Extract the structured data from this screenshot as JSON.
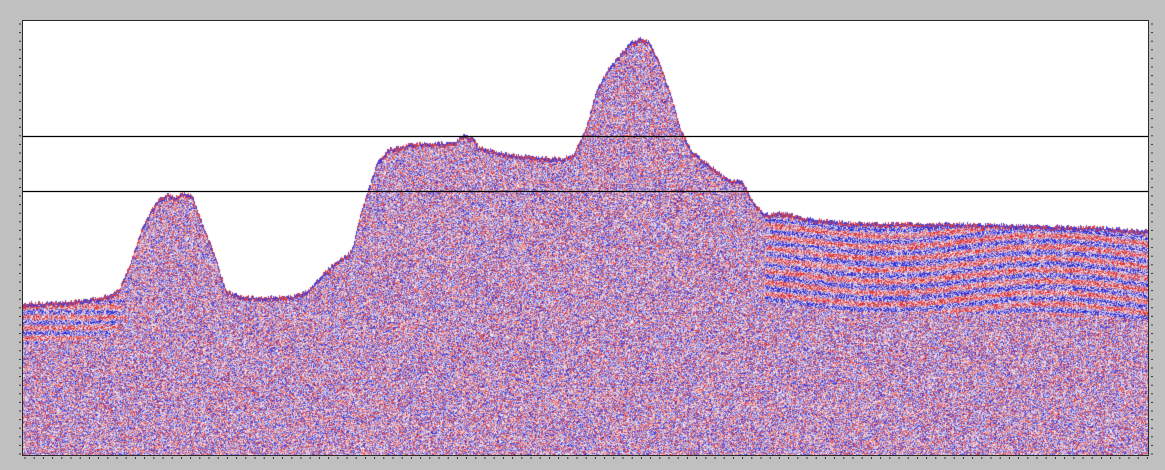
{
  "viewer": {
    "background": "#c0c0c0",
    "plot_background": "#ffffff",
    "frame_color": "#2a2a2a"
  },
  "section": {
    "palette": {
      "positive": "#e03030",
      "negative": "#2a2ad8",
      "neutral": "#f4f0f4"
    },
    "horizons": [
      {
        "name": "horizon-line-1",
        "depth_fraction": 0.264,
        "color": "#000000"
      },
      {
        "name": "horizon-line-2",
        "depth_fraction": 0.392,
        "color": "#000000"
      }
    ],
    "surface_profile": [
      [
        0.0,
        0.65
      ],
      [
        0.02,
        0.648
      ],
      [
        0.04,
        0.646
      ],
      [
        0.07,
        0.636
      ],
      [
        0.085,
        0.62
      ],
      [
        0.095,
        0.56
      ],
      [
        0.105,
        0.48
      ],
      [
        0.118,
        0.415
      ],
      [
        0.128,
        0.398
      ],
      [
        0.135,
        0.405
      ],
      [
        0.142,
        0.395
      ],
      [
        0.15,
        0.4
      ],
      [
        0.16,
        0.47
      ],
      [
        0.172,
        0.55
      ],
      [
        0.18,
        0.62
      ],
      [
        0.195,
        0.635
      ],
      [
        0.215,
        0.636
      ],
      [
        0.24,
        0.634
      ],
      [
        0.255,
        0.618
      ],
      [
        0.265,
        0.585
      ],
      [
        0.28,
        0.55
      ],
      [
        0.292,
        0.53
      ],
      [
        0.3,
        0.445
      ],
      [
        0.308,
        0.38
      ],
      [
        0.315,
        0.325
      ],
      [
        0.325,
        0.295
      ],
      [
        0.345,
        0.283
      ],
      [
        0.37,
        0.28
      ],
      [
        0.385,
        0.278
      ],
      [
        0.39,
        0.262
      ],
      [
        0.4,
        0.268
      ],
      [
        0.405,
        0.29
      ],
      [
        0.43,
        0.306
      ],
      [
        0.465,
        0.315
      ],
      [
        0.48,
        0.316
      ],
      [
        0.49,
        0.305
      ],
      [
        0.5,
        0.25
      ],
      [
        0.51,
        0.16
      ],
      [
        0.52,
        0.11
      ],
      [
        0.53,
        0.08
      ],
      [
        0.54,
        0.05
      ],
      [
        0.548,
        0.038
      ],
      [
        0.556,
        0.045
      ],
      [
        0.565,
        0.09
      ],
      [
        0.575,
        0.16
      ],
      [
        0.585,
        0.25
      ],
      [
        0.595,
        0.3
      ],
      [
        0.61,
        0.33
      ],
      [
        0.625,
        0.362
      ],
      [
        0.64,
        0.37
      ],
      [
        0.65,
        0.42
      ],
      [
        0.66,
        0.445
      ],
      [
        0.675,
        0.44
      ],
      [
        0.7,
        0.455
      ],
      [
        0.74,
        0.465
      ],
      [
        0.8,
        0.466
      ],
      [
        0.86,
        0.468
      ],
      [
        0.92,
        0.472
      ],
      [
        0.96,
        0.475
      ],
      [
        1.0,
        0.483
      ]
    ]
  }
}
